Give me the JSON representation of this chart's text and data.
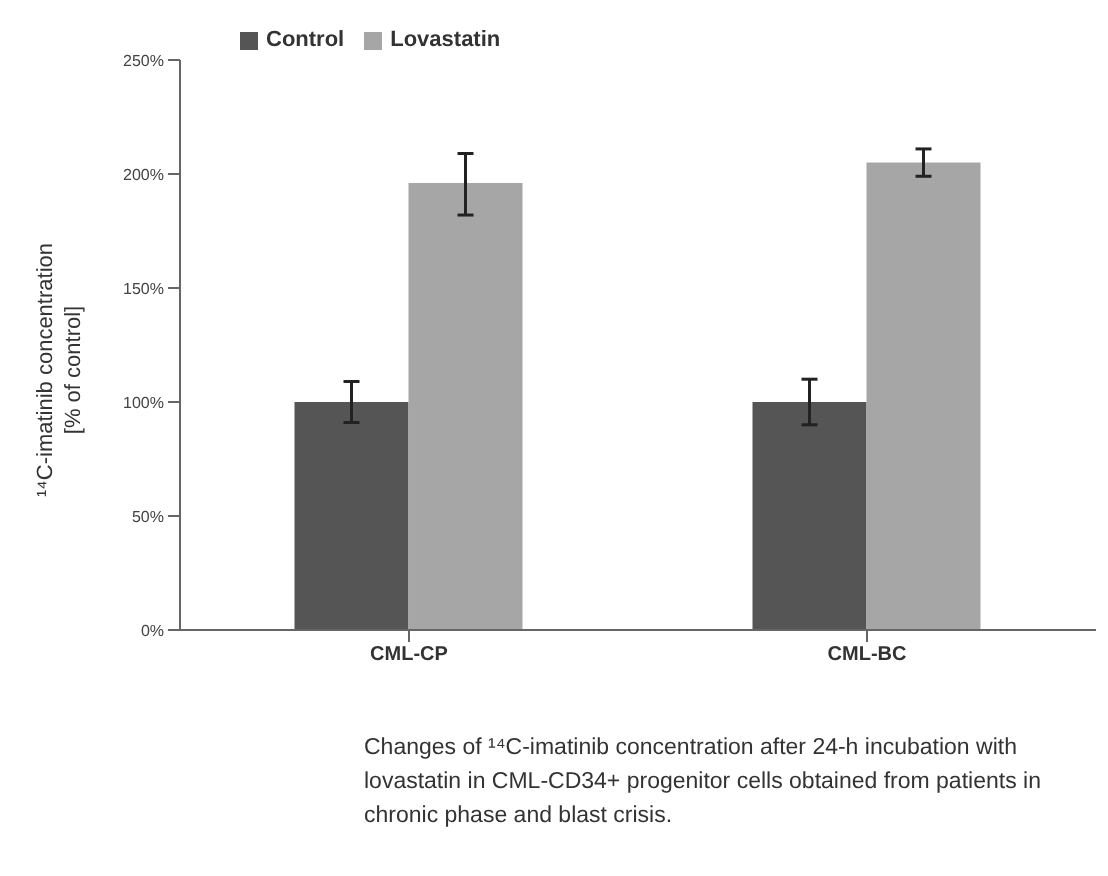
{
  "chart_data": {
    "type": "bar",
    "ylabel": "¹⁴C-imatinib concentration\n[% of control]",
    "categories": [
      "CML-CP",
      "CML-BC"
    ],
    "series": [
      {
        "name": "Control",
        "color": "#555555",
        "values": [
          100,
          100
        ],
        "errors": [
          9,
          10
        ]
      },
      {
        "name": "Lovastatin",
        "color": "#a6a6a6",
        "values": [
          196,
          205
        ],
        "errors": [
          [
            182,
            209
          ],
          [
            199,
            211
          ]
        ]
      }
    ],
    "ylim": [
      0,
      250
    ],
    "yticks": [
      {
        "value": 0,
        "label": "0%"
      },
      {
        "value": 50,
        "label": "50%"
      },
      {
        "value": 100,
        "label": "100%"
      },
      {
        "value": 150,
        "label": "150%"
      },
      {
        "value": 200,
        "label": "200%"
      },
      {
        "value": 250,
        "label": "250%"
      }
    ],
    "legend": "top left",
    "grid": false,
    "annotations": [
      "Changes of ¹⁴C-imatinib concentration after 24-h incubation with lovastatin in CML-CD34+ progenitor cells obtained from patients in chronic phase and blast crisis."
    ]
  }
}
